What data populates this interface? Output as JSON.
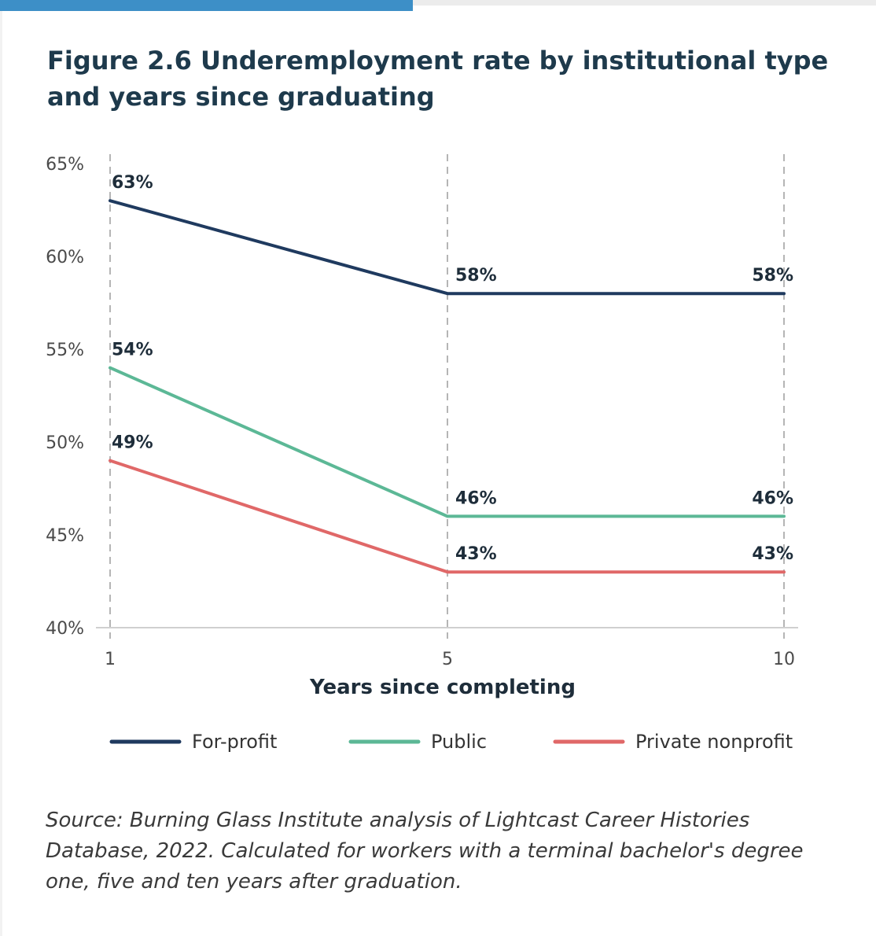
{
  "figure": {
    "title": "Figure 2.6  Underemployment rate by institutional type and years since graduating",
    "source": "Source: Burning Glass Institute analysis of Lightcast Career Histories Database, 2022. Calculated for workers with a terminal bachelor's degree one, five and ten years after graduation."
  },
  "chart_data": {
    "type": "line",
    "title": "Underemployment rate by institutional type and years since graduating",
    "xlabel": "Years since completing",
    "ylabel": "",
    "x": [
      1,
      5,
      10
    ],
    "x_tick_labels": [
      "1",
      "5",
      "10"
    ],
    "ylim": [
      40,
      65
    ],
    "y_ticks": [
      40,
      45,
      50,
      55,
      60,
      65
    ],
    "y_tick_labels": [
      "40%",
      "45%",
      "50%",
      "55%",
      "60%",
      "65%"
    ],
    "grid": "vertical dashed at each x",
    "legend_position": "bottom",
    "series": [
      {
        "name": "For-profit",
        "color": "#1f3a5f",
        "values": [
          63,
          58,
          58
        ],
        "labels": [
          "63%",
          "58%",
          "58%"
        ]
      },
      {
        "name": "Public",
        "color": "#5cb896",
        "values": [
          54,
          46,
          46
        ],
        "labels": [
          "54%",
          "46%",
          "46%"
        ]
      },
      {
        "name": "Private nonprofit",
        "color": "#e06868",
        "values": [
          49,
          43,
          43
        ],
        "labels": [
          "49%",
          "43%",
          "43%"
        ]
      }
    ]
  }
}
